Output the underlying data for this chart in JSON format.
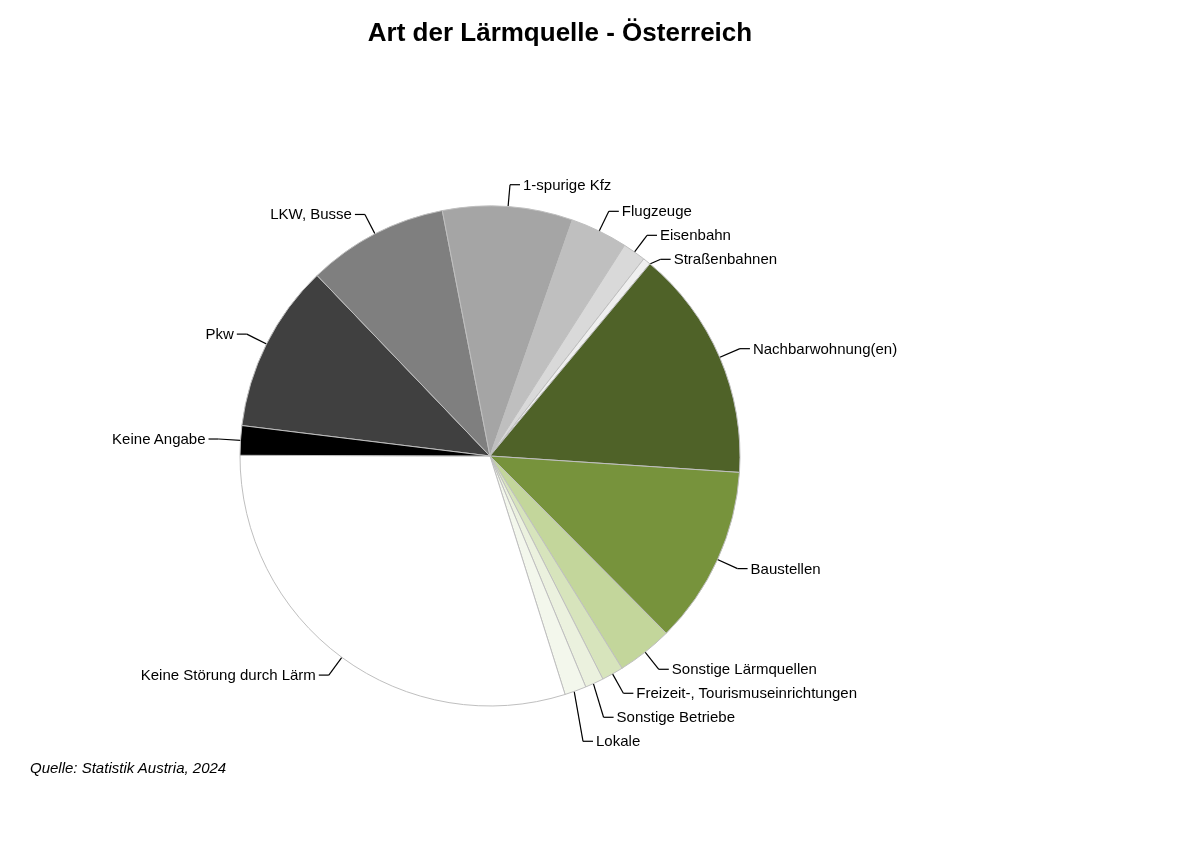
{
  "chart_data": {
    "type": "pie",
    "title": "Art der Lärmquelle - Österreich",
    "categories": [
      "Pkw",
      "LKW, Busse",
      "1-spurige Kfz",
      "Flugzeuge",
      "Eisenbahn",
      "Straßenbahnen",
      "Nachbarwohnung(en)",
      "Baustellen",
      "Sonstige Lärmquellen",
      "Freizeit-, Tourismuseinrichtungen",
      "Sonstige Betriebe",
      "Lokale",
      "Keine Störung durch Lärm",
      "Keine Angabe"
    ],
    "values": [
      10.9,
      9.1,
      8.4,
      3.7,
      1.5,
      0.5,
      15.0,
      11.5,
      3.6,
      1.4,
      1.2,
      1.4,
      29.9,
      1.9
    ],
    "colors": [
      "#404040",
      "#7f7f7f",
      "#a5a5a5",
      "#bfbfbf",
      "#d9d9d9",
      "#efefef",
      "#4f6228",
      "#77933c",
      "#c3d69b",
      "#d7e4bc",
      "#ebf1de",
      "#f3f7ec",
      "#ffffff",
      "#000000"
    ],
    "annotations": [
      "Quelle: Statistik Austria, 2024"
    ]
  }
}
